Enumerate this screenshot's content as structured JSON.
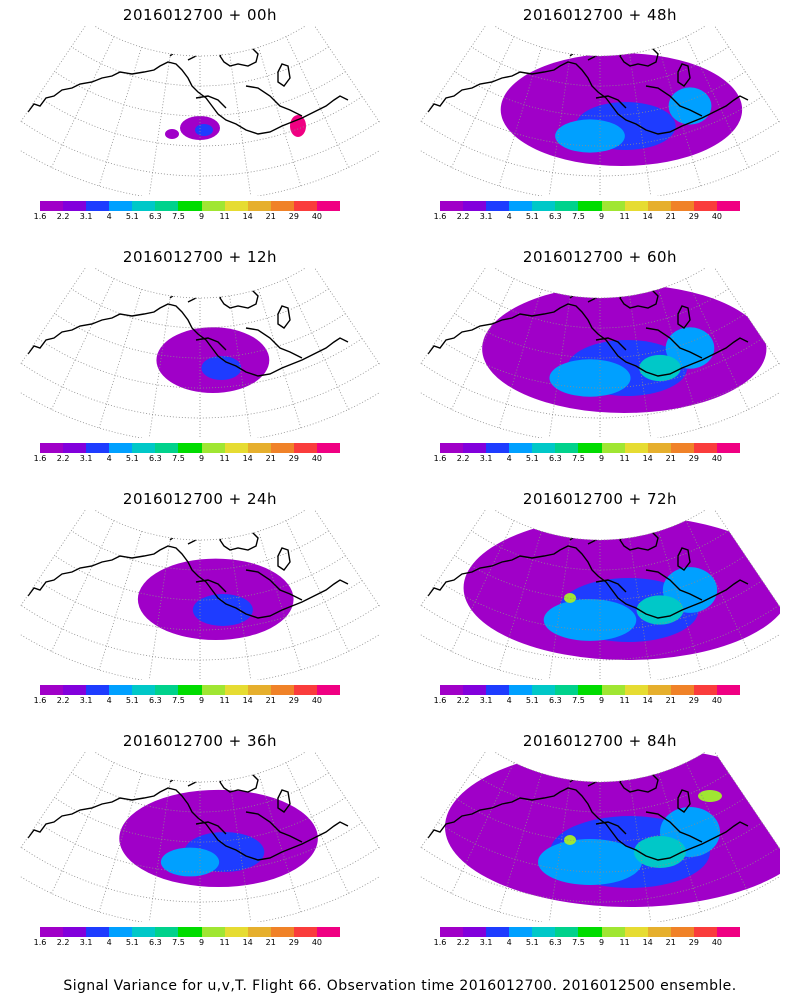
{
  "legend": {
    "ticks": [
      "1.6",
      "2.2",
      "3.1",
      "4",
      "5.1",
      "6.3",
      "7.5",
      "9",
      "11",
      "14",
      "21",
      "29",
      "40"
    ],
    "colors": [
      "#a000c8",
      "#8200dc",
      "#1e3cff",
      "#00a0ff",
      "#00c8c8",
      "#00d28c",
      "#00dc00",
      "#a0e632",
      "#e6dc32",
      "#e6af2d",
      "#f08228",
      "#fa3c3c",
      "#f00082"
    ]
  },
  "map_colors": {
    "coast": "#000000",
    "grid": "#8c8c8c",
    "low": "#a000c8",
    "mid": "#1e3cff",
    "cyan": "#00a0ff",
    "green": "#00c8c8",
    "lime": "#a0e632",
    "peak": "#f00082"
  },
  "panels": [
    {
      "title": "2016012700 + 00h",
      "intensity": 0
    },
    {
      "title": "2016012700 + 48h",
      "intensity": 4
    },
    {
      "title": "2016012700 + 12h",
      "intensity": 1
    },
    {
      "title": "2016012700 + 60h",
      "intensity": 5
    },
    {
      "title": "2016012700 + 24h",
      "intensity": 2
    },
    {
      "title": "2016012700 + 72h",
      "intensity": 6
    },
    {
      "title": "2016012700 + 36h",
      "intensity": 3
    },
    {
      "title": "2016012700 + 84h",
      "intensity": 7
    }
  ],
  "footer": "Signal Variance for u,v,T. Flight 66. Observation time 2016012700. 2016012500 ensemble."
}
